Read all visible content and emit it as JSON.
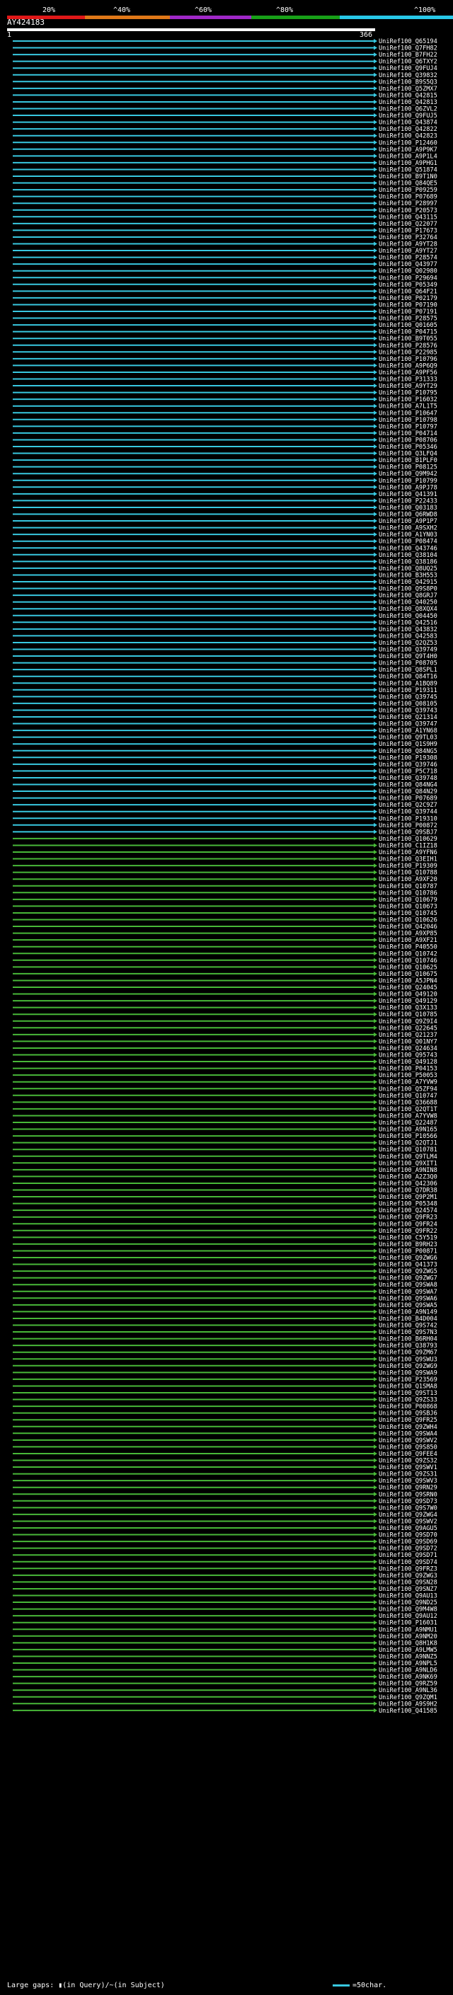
{
  "scale": {
    "labels": [
      "20%",
      "^40%",
      "^60%",
      "^80%",
      "^100%"
    ],
    "colors": [
      "#e01818",
      "#e07818",
      "#a028c8",
      "#18a018",
      "#28c8e8"
    ]
  },
  "query": {
    "name": "AY424183",
    "start": "1",
    "end": "366"
  },
  "hit_style": {
    "high_color": "#38c8e0",
    "mid_color": "#48b838",
    "cutoff_row": 118
  },
  "hits": [
    "UniRef100_Q65194",
    "UniRef100_Q7FH82",
    "UniRef100_B7FH22",
    "UniRef100_Q6TXY2",
    "UniRef100_Q9FUJ4",
    "UniRef100_Q39832",
    "UniRef100_B9S5Q3",
    "UniRef100_Q5ZMX7",
    "UniRef100_Q42815",
    "UniRef100_Q42813",
    "UniRef100_Q6ZVL2",
    "UniRef100_Q9FUJ5",
    "UniRef100_Q43874",
    "UniRef100_Q42822",
    "UniRef100_Q42823",
    "UniRef100_P12460",
    "UniRef100_A9P9K7",
    "UniRef100_A9P1L4",
    "UniRef100_A9PHG1",
    "UniRef100_Q51874",
    "UniRef100_B9T1N0",
    "UniRef100_Q84QE5",
    "UniRef100_P09259",
    "UniRef100_P07689",
    "UniRef100_P28997",
    "UniRef100_P20573",
    "UniRef100_Q43115",
    "UniRef100_Q22077",
    "UniRef100_P17673",
    "UniRef100_P32764",
    "UniRef100_A9YT28",
    "UniRef100_A9YT27",
    "UniRef100_P28574",
    "UniRef100_Q43977",
    "UniRef100_Q02980",
    "UniRef100_P29694",
    "UniRef100_P05349",
    "UniRef100_Q64F21",
    "UniRef100_P02179",
    "UniRef100_P07190",
    "UniRef100_P07191",
    "UniRef100_P28575",
    "UniRef100_Q01605",
    "UniRef100_P04715",
    "UniRef100_B9T055",
    "UniRef100_P28576",
    "UniRef100_P22985",
    "UniRef100_P10796",
    "UniRef100_A9P6Q9",
    "UniRef100_A9PF56",
    "UniRef100_P31333",
    "UniRef100_A9YT29",
    "UniRef100_P10795",
    "UniRef100_P16032",
    "UniRef100_A7L1T5",
    "UniRef100_P10647",
    "UniRef100_P10798",
    "UniRef100_P10797",
    "UniRef100_P04714",
    "UniRef100_P08706",
    "UniRef100_P05346",
    "UniRef100_Q3LFQ4",
    "UniRef100_B1PLF0",
    "UniRef100_P08125",
    "UniRef100_Q9M942",
    "UniRef100_P10799",
    "UniRef100_A9PJ78",
    "UniRef100_Q41391",
    "UniRef100_P22433",
    "UniRef100_Q03183",
    "UniRef100_Q6RWD8",
    "UniRef100_A9P1P7",
    "UniRef100_A9SXH2",
    "UniRef100_A1YN03",
    "UniRef100_P08474",
    "UniRef100_Q43746",
    "UniRef100_Q38104",
    "UniRef100_Q38186",
    "UniRef100_Q8UQ25",
    "UniRef100_B3H553",
    "UniRef100_Q42915",
    "UniRef100_Q9S8P0",
    "UniRef100_Q8GRJ7",
    "UniRef100_Q40250",
    "UniRef100_Q8XQX4",
    "UniRef100_Q04450",
    "UniRef100_Q42516",
    "UniRef100_Q43832",
    "UniRef100_Q42583",
    "UniRef100_Q2QZ53",
    "UniRef100_Q39749",
    "UniRef100_Q9T4H0",
    "UniRef100_P08705",
    "UniRef100_Q8SPL1",
    "UniRef100_Q84T16",
    "UniRef100_A1BQ89",
    "UniRef100_P19311",
    "UniRef100_Q39745",
    "UniRef100_Q08105",
    "UniRef100_Q39743",
    "UniRef100_Q21314",
    "UniRef100_Q39747",
    "UniRef100_A1YN68",
    "UniRef100_Q9TL03",
    "UniRef100_Q1S9H9",
    "UniRef100_Q84NG5",
    "UniRef100_P19308",
    "UniRef100_Q39746",
    "UniRef100_P5C718",
    "UniRef100_Q39748",
    "UniRef100_Q84NG4",
    "UniRef100_Q84N29",
    "UniRef100_P07689",
    "UniRef100_Q2C9Z7",
    "UniRef100_Q39744",
    "UniRef100_P19310",
    "UniRef100_P00872",
    "UniRef100_Q9SBJ7",
    "UniRef100_Q10629",
    "UniRef100_C1IZ18",
    "UniRef100_A9YFN6",
    "UniRef100_Q3EIH1",
    "UniRef100_P19309",
    "UniRef100_Q10788",
    "UniRef100_A9XF20",
    "UniRef100_Q10787",
    "UniRef100_Q10786",
    "UniRef100_Q10679",
    "UniRef100_Q10673",
    "UniRef100_Q10745",
    "UniRef100_Q10626",
    "UniRef100_Q42046",
    "UniRef100_A9XP85",
    "UniRef100_A9XF21",
    "UniRef100_P40550",
    "UniRef100_Q10742",
    "UniRef100_Q10746",
    "UniRef100_Q10625",
    "UniRef100_Q10675",
    "UniRef100_A5JPN4",
    "UniRef100_Q24045",
    "UniRef100_Q49120",
    "UniRef100_Q49129",
    "UniRef100_Q3X133",
    "UniRef100_Q10785",
    "UniRef100_Q9Z9I4",
    "UniRef100_Q22645",
    "UniRef100_Q21237",
    "UniRef100_Q01NY7",
    "UniRef100_Q24634",
    "UniRef100_Q95743",
    "UniRef100_Q49128",
    "UniRef100_P04153",
    "UniRef100_P50053",
    "UniRef100_A7YVW9",
    "UniRef100_Q5ZF94",
    "UniRef100_Q10747",
    "UniRef100_Q36688",
    "UniRef100_Q2QT1T",
    "UniRef100_A7YVW8",
    "UniRef100_Q22487",
    "UniRef100_A9N165",
    "UniRef100_P10566",
    "UniRef100_Q2QTJ1",
    "UniRef100_Q10781",
    "UniRef100_Q9TLM4",
    "UniRef100_Q9XIT1",
    "UniRef100_A9NIN8",
    "UniRef100_A2Z3Q0",
    "UniRef100_Q42306",
    "UniRef100_Q7DR38",
    "UniRef100_Q9P2M1",
    "UniRef100_P05348",
    "UniRef100_Q24574",
    "UniRef100_Q9FR23",
    "UniRef100_Q9FR24",
    "UniRef100_Q9FR22",
    "UniRef100_C5Y519",
    "UniRef100_B9RH23",
    "UniRef100_P00871",
    "UniRef100_Q9ZWG6",
    "UniRef100_Q41373",
    "UniRef100_Q9ZWG5",
    "UniRef100_Q9ZWG7",
    "UniRef100_Q9SWA8",
    "UniRef100_Q9SWA7",
    "UniRef100_Q9SWA6",
    "UniRef100_Q9SWA5",
    "UniRef100_A9N149",
    "UniRef100_B4D004",
    "UniRef100_Q9S742",
    "UniRef100_Q9S7N3",
    "UniRef100_B6RH04",
    "UniRef100_Q38793",
    "UniRef100_Q9ZM67",
    "UniRef100_Q9SWU3",
    "UniRef100_Q9ZWG9",
    "UniRef100_Q9SWA9",
    "UniRef100_P23569",
    "UniRef100_Q1SMA8",
    "UniRef100_Q9ST13",
    "UniRef100_Q9ZS33",
    "UniRef100_P00868",
    "UniRef100_Q9SBJ6",
    "UniRef100_Q9FR25",
    "UniRef100_Q9ZWH4",
    "UniRef100_Q9SWA4",
    "UniRef100_Q9SWV2",
    "UniRef100_Q9S850",
    "UniRef100_Q9FEE4",
    "UniRef100_Q9ZS32",
    "UniRef100_Q9SWV1",
    "UniRef100_Q9ZS31",
    "UniRef100_Q9SWV3",
    "UniRef100_Q9RN29",
    "UniRef100_Q9SRN0",
    "UniRef100_Q9SD73",
    "UniRef100_Q9S7W0",
    "UniRef100_Q9ZWG4",
    "UniRef100_Q9SWV2",
    "UniRef100_Q9AGU5",
    "UniRef100_Q9SD70",
    "UniRef100_Q9SD69",
    "UniRef100_Q9SD72",
    "UniRef100_Q9SD71",
    "UniRef100_Q9SD74",
    "UniRef100_Q9FRZ3",
    "UniRef100_Q9ZWG3",
    "UniRef100_Q9SN28",
    "UniRef100_Q9SNZ7",
    "UniRef100_Q9AU13",
    "UniRef100_Q9ND25",
    "UniRef100_Q9M4W8",
    "UniRef100_Q9AU12",
    "UniRef100_P16031",
    "UniRef100_A9NMU1",
    "UniRef100_A9NM20",
    "UniRef100_Q8H1K8",
    "UniRef100_A9LMW5",
    "UniRef100_A9NNZ5",
    "UniRef100_A9NPL5",
    "UniRef100_A9NLD6",
    "UniRef100_A9NK69",
    "UniRef100_Q9RZ59",
    "UniRef100_A9NL36",
    "UniRef100_Q9ZQM1",
    "UniRef100_A9S9H2",
    "UniRef100_Q41585"
  ],
  "footer": {
    "text": "Large gaps: ▮(in Query)/~(in Subject)",
    "legend_text": "=50char."
  }
}
